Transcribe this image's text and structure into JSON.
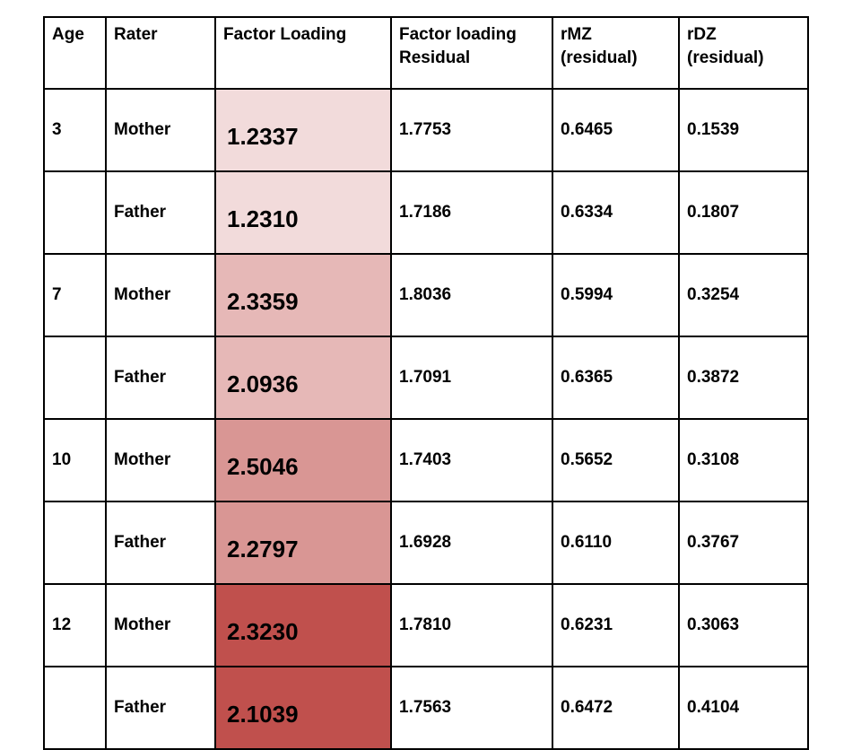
{
  "table": {
    "headers": [
      "Age",
      "Rater",
      "Factor Loading",
      "Factor loading\nResidual",
      "rMZ\n(residual)",
      "rDZ\n(residual)"
    ],
    "rows": [
      {
        "age": "3",
        "rater": "Mother",
        "fl": "1.2337",
        "flr": "1.7753",
        "rmz": "0.6465",
        "rdz": "0.1539",
        "color": "#f2dbdb"
      },
      {
        "age": "",
        "rater": "Father",
        "fl": "1.2310",
        "flr": "1.7186",
        "rmz": "0.6334",
        "rdz": "0.1807",
        "color": "#f2dbdb"
      },
      {
        "age": "7",
        "rater": "Mother",
        "fl": "2.3359",
        "flr": "1.8036",
        "rmz": "0.5994",
        "rdz": "0.3254",
        "color": "#e6b8b7"
      },
      {
        "age": "",
        "rater": "Father",
        "fl": "2.0936",
        "flr": "1.7091",
        "rmz": "0.6365",
        "rdz": "0.3872",
        "color": "#e6b8b7"
      },
      {
        "age": "10",
        "rater": "Mother",
        "fl": "2.5046",
        "flr": "1.7403",
        "rmz": "0.5652",
        "rdz": "0.3108",
        "color": "#d99694"
      },
      {
        "age": "",
        "rater": "Father",
        "fl": "2.2797",
        "flr": "1.6928",
        "rmz": "0.6110",
        "rdz": "0.3767",
        "color": "#d99694"
      },
      {
        "age": "12",
        "rater": "Mother",
        "fl": "2.3230",
        "flr": "1.7810",
        "rmz": "0.6231",
        "rdz": "0.3063",
        "color": "#c0504d"
      },
      {
        "age": "",
        "rater": "Father",
        "fl": "2.1039",
        "flr": "1.7563",
        "rmz": "0.6472",
        "rdz": "0.4104",
        "color": "#c0504d"
      }
    ]
  }
}
